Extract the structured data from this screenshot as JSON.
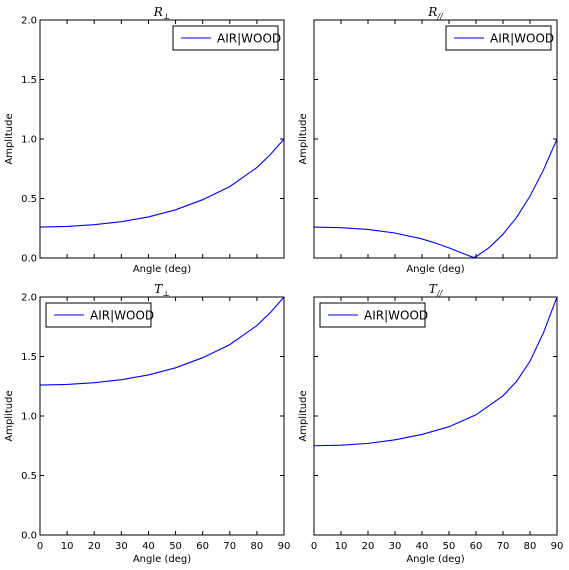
{
  "chart_data": [
    {
      "type": "line",
      "title": "R⊥",
      "title_main": "R",
      "title_sub": "⊥",
      "xlabel": "Angle (deg)",
      "ylabel": "Amplitude",
      "xlim": [
        0,
        90
      ],
      "ylim": [
        0,
        2
      ],
      "x_ticks": [
        0,
        10,
        20,
        30,
        40,
        50,
        60,
        70,
        80,
        90
      ],
      "y_ticks": [
        0.0,
        0.5,
        1.0,
        1.5,
        2.0
      ],
      "y_tick_labels": [
        "0.0",
        "0.5",
        "1.0",
        "1.5",
        "2.0"
      ],
      "show_x_tick_labels": false,
      "show_y_tick_labels": true,
      "legend": {
        "position": "upper-right"
      },
      "series": [
        {
          "name": "AIR|WOOD",
          "color": "#0000ff",
          "x": [
            0,
            10,
            20,
            30,
            40,
            50,
            60,
            70,
            80,
            85,
            90
          ],
          "y": [
            0.26,
            0.265,
            0.28,
            0.305,
            0.345,
            0.405,
            0.49,
            0.6,
            0.76,
            0.87,
            1.0
          ]
        }
      ]
    },
    {
      "type": "line",
      "title": "R//",
      "title_main": "R",
      "title_sub": "//",
      "xlabel": "Angle (deg)",
      "ylabel": "Amplitude",
      "xlim": [
        0,
        90
      ],
      "ylim": [
        0,
        2
      ],
      "x_ticks": [
        0,
        10,
        20,
        30,
        40,
        50,
        60,
        70,
        80,
        90
      ],
      "y_ticks": [
        0.0,
        0.5,
        1.0,
        1.5,
        2.0
      ],
      "y_tick_labels": [
        "0.0",
        "0.5",
        "1.0",
        "1.5",
        "2.0"
      ],
      "show_x_tick_labels": false,
      "show_y_tick_labels": false,
      "legend": {
        "position": "upper-right"
      },
      "series": [
        {
          "name": "AIR|WOOD",
          "color": "#0000ff",
          "x": [
            0,
            10,
            20,
            30,
            40,
            45,
            50,
            55,
            59,
            60,
            65,
            70,
            75,
            80,
            85,
            90
          ],
          "y": [
            0.26,
            0.255,
            0.24,
            0.21,
            0.16,
            0.125,
            0.085,
            0.04,
            0.005,
            0.01,
            0.09,
            0.2,
            0.34,
            0.52,
            0.74,
            1.0
          ]
        }
      ]
    },
    {
      "type": "line",
      "title": "T⊥",
      "title_main": "T",
      "title_sub": "⊥",
      "xlabel": "Angle (deg)",
      "ylabel": "Amplitude",
      "xlim": [
        0,
        90
      ],
      "ylim": [
        0,
        2
      ],
      "x_ticks": [
        0,
        10,
        20,
        30,
        40,
        50,
        60,
        70,
        80,
        90
      ],
      "x_tick_labels": [
        "0",
        "10",
        "20",
        "30",
        "40",
        "50",
        "60",
        "70",
        "80",
        "90"
      ],
      "y_ticks": [
        0.0,
        0.5,
        1.0,
        1.5,
        2.0
      ],
      "y_tick_labels": [
        "0.0",
        "0.5",
        "1.0",
        "1.5",
        "2.0"
      ],
      "show_x_tick_labels": true,
      "show_y_tick_labels": true,
      "legend": {
        "position": "upper-left"
      },
      "series": [
        {
          "name": "AIR|WOOD",
          "color": "#0000ff",
          "x": [
            0,
            10,
            20,
            30,
            40,
            50,
            60,
            70,
            80,
            85,
            90
          ],
          "y": [
            1.26,
            1.265,
            1.28,
            1.305,
            1.345,
            1.405,
            1.49,
            1.6,
            1.76,
            1.87,
            2.0
          ]
        }
      ]
    },
    {
      "type": "line",
      "title": "T//",
      "title_main": "T",
      "title_sub": "//",
      "xlabel": "Angle (deg)",
      "ylabel": "Amplitude",
      "xlim": [
        0,
        90
      ],
      "ylim": [
        0,
        2
      ],
      "x_ticks": [
        0,
        10,
        20,
        30,
        40,
        50,
        60,
        70,
        80,
        90
      ],
      "x_tick_labels": [
        "0",
        "10",
        "20",
        "30",
        "40",
        "50",
        "60",
        "70",
        "80",
        "90"
      ],
      "y_ticks": [
        0.0,
        0.5,
        1.0,
        1.5,
        2.0
      ],
      "y_tick_labels": [
        "0.0",
        "0.5",
        "1.0",
        "1.5",
        "2.0"
      ],
      "show_x_tick_labels": true,
      "show_y_tick_labels": false,
      "legend": {
        "position": "upper-left"
      },
      "series": [
        {
          "name": "AIR|WOOD",
          "color": "#0000ff",
          "x": [
            0,
            10,
            20,
            30,
            40,
            50,
            60,
            70,
            75,
            80,
            85,
            90
          ],
          "y": [
            0.75,
            0.755,
            0.77,
            0.8,
            0.845,
            0.91,
            1.01,
            1.17,
            1.29,
            1.46,
            1.7,
            2.0
          ]
        }
      ]
    }
  ]
}
